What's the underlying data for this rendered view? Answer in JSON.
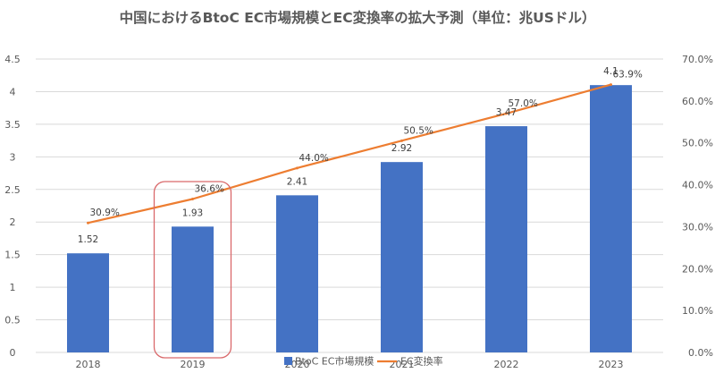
{
  "chart_data": {
    "type": "bar",
    "title": "中国におけるBtoC EC市場規模とEC変換率の拡大予測（単位：兆USドル）",
    "categories": [
      "2018",
      "2019",
      "2020",
      "2021",
      "2022",
      "2023"
    ],
    "series": [
      {
        "name": "BtoC EC市場規模",
        "type": "bar",
        "axis": "left",
        "color": "#4472C4",
        "values": [
          1.52,
          1.93,
          2.41,
          2.92,
          3.47,
          4.1
        ],
        "labels": [
          "1.52",
          "1.93",
          "2.41",
          "2.92",
          "3.47",
          "4.1"
        ]
      },
      {
        "name": "EC変換率",
        "type": "line",
        "axis": "right",
        "color": "#ED7D31",
        "values": [
          30.9,
          36.6,
          44.0,
          50.5,
          57.0,
          63.9
        ],
        "labels": [
          "30.9%",
          "36.6%",
          "44.0%",
          "50.5%",
          "57.0%",
          "63.9%"
        ]
      }
    ],
    "y_left": {
      "ylim": [
        0,
        4.5
      ],
      "ticks": [
        "0",
        "0.5",
        "1",
        "1.5",
        "2",
        "2.5",
        "3",
        "3.5",
        "4",
        "4.5"
      ]
    },
    "y_right": {
      "ylim": [
        0,
        70
      ],
      "ticks": [
        "0.0%",
        "10.0%",
        "20.0%",
        "30.0%",
        "40.0%",
        "50.0%",
        "60.0%",
        "70.0%"
      ]
    },
    "highlight_category": "2019",
    "highlight_color": "#D9696B",
    "grid": true,
    "legend_position": "bottom"
  }
}
